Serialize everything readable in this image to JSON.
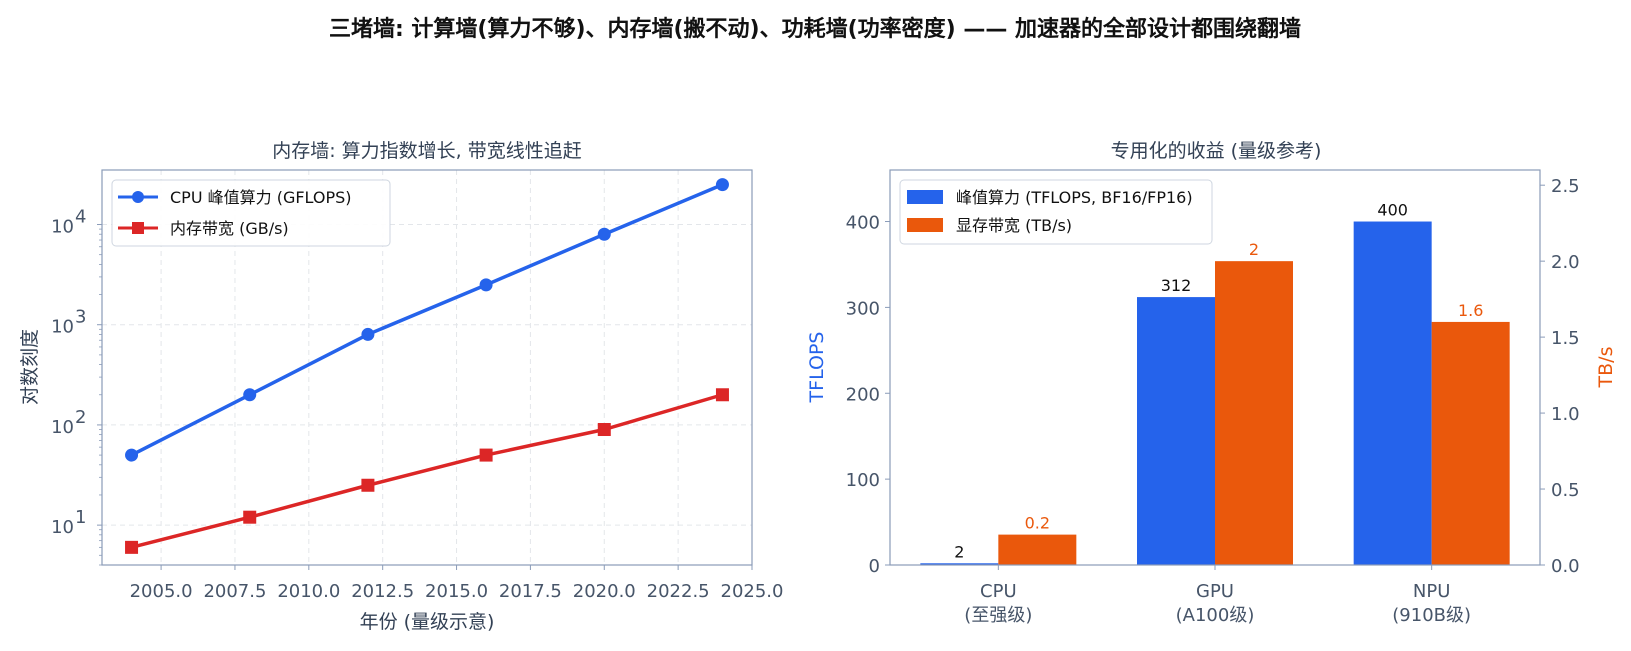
{
  "suptitle": "三堵墙: 计算墙(算力不够)、内存墙(搬不动)、功耗墙(功率密度) —— 加速器的全部设计都围绕翻墙",
  "colors": {
    "cpu_line": "#2563eb",
    "mem_line": "#dc2626",
    "compute_bar": "#2563eb",
    "bandwidth_bar": "#ea580c",
    "axis_text": "#475569",
    "spine": "#8a9bb8"
  },
  "chart_data": [
    {
      "type": "line",
      "title": "内存墙: 算力指数增长, 带宽线性追赶",
      "xlabel": "年份 (量级示意)",
      "ylabel": "对数刻度",
      "yscale": "log",
      "xlim": [
        2003.0,
        2025.0
      ],
      "ylim": [
        4,
        35000
      ],
      "x_ticks": [
        2005.0,
        2007.5,
        2010.0,
        2012.5,
        2015.0,
        2017.5,
        2020.0,
        2022.5,
        2025.0
      ],
      "x_tick_labels": [
        "2005.0",
        "2007.5",
        "2010.0",
        "2012.5",
        "2015.0",
        "2017.5",
        "2020.0",
        "2022.5",
        "2025.0"
      ],
      "y_ticks": [
        10,
        100,
        1000,
        10000
      ],
      "y_tick_bases": [
        "10",
        "10",
        "10",
        "10"
      ],
      "y_tick_exps": [
        "1",
        "2",
        "3",
        "4"
      ],
      "grid": true,
      "legend_position": "top-left",
      "series": [
        {
          "name": "CPU 峰值算力 (GFLOPS)",
          "marker": "circle",
          "x": [
            2004,
            2008,
            2012,
            2016,
            2020,
            2024
          ],
          "values": [
            50,
            200,
            800,
            2500,
            8000,
            25000
          ]
        },
        {
          "name": "内存带宽 (GB/s)",
          "marker": "square",
          "x": [
            2004,
            2008,
            2012,
            2016,
            2020,
            2024
          ],
          "values": [
            6,
            12,
            25,
            50,
            90,
            200
          ]
        }
      ]
    },
    {
      "type": "bar",
      "title": "专用化的收益 (量级参考)",
      "categories": [
        [
          "CPU",
          "(至强级)"
        ],
        [
          "GPU",
          "(A100级)"
        ],
        [
          "NPU",
          "(910B级)"
        ]
      ],
      "ylabel": "TFLOPS",
      "y2label": "TB/s",
      "ylim": [
        0,
        460
      ],
      "y2lim": [
        0,
        2.6
      ],
      "y_ticks": [
        0,
        100,
        200,
        300,
        400
      ],
      "y_tick_labels": [
        "0",
        "100",
        "200",
        "300",
        "400"
      ],
      "y2_ticks": [
        0,
        0.5,
        1.0,
        1.5,
        2.0,
        2.5
      ],
      "y2_tick_labels": [
        "0.0",
        "0.5",
        "1.0",
        "1.5",
        "2.0",
        "2.5"
      ],
      "grid": false,
      "legend_position": "top-left",
      "series": [
        {
          "name": "峰值算力 (TFLOPS, BF16/FP16)",
          "axis": "left",
          "values": [
            2,
            312,
            400
          ],
          "value_labels": [
            "2",
            "312",
            "400"
          ]
        },
        {
          "name": "显存带宽 (TB/s)",
          "axis": "right",
          "values": [
            0.2,
            2,
            1.6
          ],
          "value_labels": [
            "0.2",
            "2",
            "1.6"
          ]
        }
      ]
    }
  ]
}
